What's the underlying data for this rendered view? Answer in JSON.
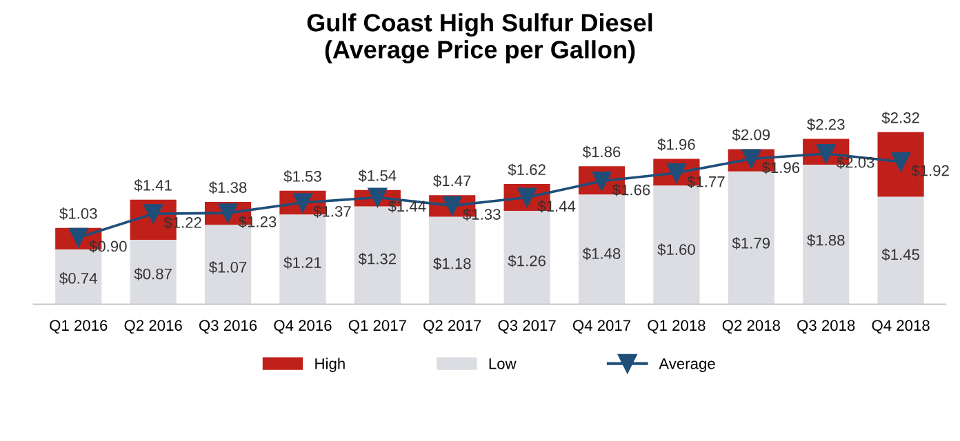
{
  "chart_data": {
    "type": "bar",
    "stacked": true,
    "title": "Gulf Coast High Sulfur Diesel\n(Average Price per Gallon)",
    "categories": [
      "Q1 2016",
      "Q2 2016",
      "Q3 2016",
      "Q4 2016",
      "Q1 2017",
      "Q2 2017",
      "Q3 2017",
      "Q4 2017",
      "Q1 2018",
      "Q2 2018",
      "Q3 2018",
      "Q4 2018"
    ],
    "series": [
      {
        "name": "Low",
        "color": "#dcdde2",
        "values": [
          0.74,
          0.87,
          1.07,
          1.21,
          1.32,
          1.18,
          1.26,
          1.48,
          1.6,
          1.79,
          1.88,
          1.45
        ],
        "value_labels": [
          "$0.74",
          "$0.87",
          "$1.07",
          "$1.21",
          "$1.32",
          "$1.18",
          "$1.26",
          "$1.48",
          "$1.60",
          "$1.79",
          "$1.88",
          "$1.45"
        ]
      },
      {
        "name": "High",
        "color": "#c0201a",
        "values": [
          0.29,
          0.54,
          0.31,
          0.32,
          0.22,
          0.29,
          0.36,
          0.38,
          0.36,
          0.3,
          0.35,
          0.87
        ]
      },
      {
        "name": "Average",
        "type": "line",
        "color": "#1f4e79",
        "marker": "triangle",
        "values": [
          0.9,
          1.22,
          1.23,
          1.37,
          1.44,
          1.33,
          1.44,
          1.66,
          1.77,
          1.96,
          2.03,
          1.92
        ],
        "value_labels": [
          "$0.90",
          "$1.22",
          "$1.23",
          "$1.37",
          "$1.44",
          "$1.33",
          "$1.44",
          "$1.66",
          "$1.77",
          "$1.96",
          "$2.03",
          "$1.92"
        ]
      }
    ],
    "totals": [
      "$1.03",
      "$1.41",
      "$1.38",
      "$1.53",
      "$1.54",
      "$1.47",
      "$1.62",
      "$1.86",
      "$1.96",
      "$2.09",
      "$2.23",
      "$2.32"
    ],
    "tick_labels": "x",
    "grid": false,
    "legend": "bottom"
  }
}
